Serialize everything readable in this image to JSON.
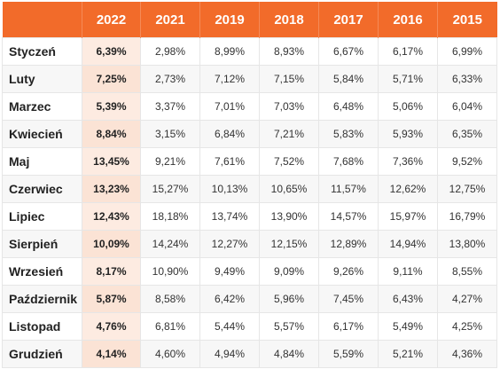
{
  "table": {
    "headers": [
      "",
      "2022",
      "2021",
      "2019",
      "2018",
      "2017",
      "2016",
      "2015"
    ],
    "rows": [
      {
        "month": "Styczeń",
        "values": [
          "6,39%",
          "2,98%",
          "8,99%",
          "8,93%",
          "6,67%",
          "6,17%",
          "6,99%"
        ]
      },
      {
        "month": "Luty",
        "values": [
          "7,25%",
          "2,73%",
          "7,12%",
          "7,15%",
          "5,84%",
          "5,71%",
          "6,33%"
        ]
      },
      {
        "month": "Marzec",
        "values": [
          "5,39%",
          "3,37%",
          "7,01%",
          "7,03%",
          "6,48%",
          "5,06%",
          "6,04%"
        ]
      },
      {
        "month": "Kwiecień",
        "values": [
          "8,84%",
          "3,15%",
          "6,84%",
          "7,21%",
          "5,83%",
          "5,93%",
          "6,35%"
        ]
      },
      {
        "month": "Maj",
        "values": [
          "13,45%",
          "9,21%",
          "7,61%",
          "7,52%",
          "7,68%",
          "7,36%",
          "9,52%"
        ]
      },
      {
        "month": "Czerwiec",
        "values": [
          "13,23%",
          "15,27%",
          "10,13%",
          "10,65%",
          "11,57%",
          "12,62%",
          "12,75%"
        ]
      },
      {
        "month": "Lipiec",
        "values": [
          "12,43%",
          "18,18%",
          "13,74%",
          "13,90%",
          "14,57%",
          "15,97%",
          "16,79%"
        ]
      },
      {
        "month": "Sierpień",
        "values": [
          "10,09%",
          "14,24%",
          "12,27%",
          "12,15%",
          "12,89%",
          "14,94%",
          "13,80%"
        ]
      },
      {
        "month": "Wrzesień",
        "values": [
          "8,17%",
          "10,90%",
          "9,49%",
          "9,09%",
          "9,26%",
          "9,11%",
          "8,55%"
        ]
      },
      {
        "month": "Październik",
        "values": [
          "5,87%",
          "8,58%",
          "6,42%",
          "5,96%",
          "7,45%",
          "6,43%",
          "4,27%"
        ]
      },
      {
        "month": "Listopad",
        "values": [
          "4,76%",
          "6,81%",
          "5,44%",
          "5,57%",
          "6,17%",
          "5,49%",
          "4,25%"
        ]
      },
      {
        "month": "Grudzień",
        "values": [
          "4,14%",
          "4,60%",
          "4,94%",
          "4,84%",
          "5,59%",
          "5,21%",
          "4,36%"
        ]
      }
    ]
  },
  "colors": {
    "header_bg": "#f26b2a",
    "highlight_bg": "#fdebe1"
  }
}
